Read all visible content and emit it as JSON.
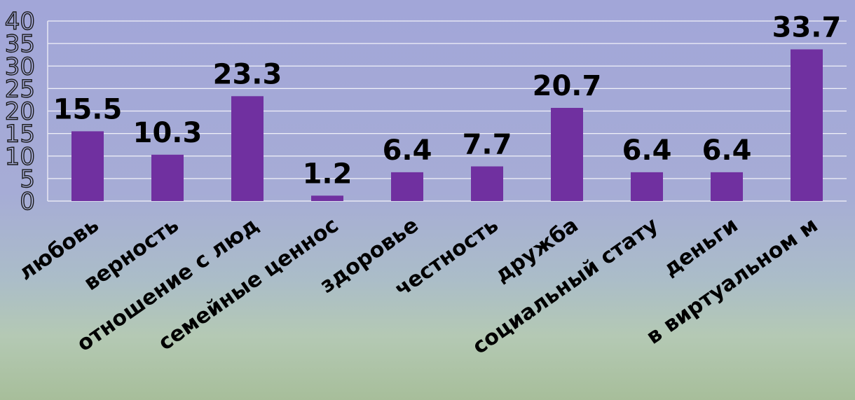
{
  "chart_data": {
    "type": "bar",
    "categories": [
      "любовь",
      "верность",
      "отношение с люд",
      "семейные ценнос",
      "здоровье",
      "честность",
      "дружба",
      "социальный стату",
      "деньги",
      "в виртуальном м"
    ],
    "values": [
      15.5,
      10.3,
      23.3,
      1.2,
      6.4,
      7.7,
      20.7,
      6.4,
      6.4,
      33.7
    ],
    "data_labels": [
      "15.5",
      "10.3",
      "23.3",
      "1.2",
      "6.4",
      "7.7",
      "20.7",
      "6.4",
      "6.4",
      "33.7"
    ],
    "y_ticks": [
      "0",
      "5",
      "10",
      "15",
      "20",
      "25",
      "30",
      "35",
      "40"
    ],
    "ylim": [
      0,
      40
    ],
    "title": "",
    "xlabel": "",
    "ylabel": "",
    "grid": true,
    "legend": "none",
    "colors": {
      "bar": "#7030a0",
      "gridline": "#ffffff",
      "text": "#000000"
    }
  }
}
